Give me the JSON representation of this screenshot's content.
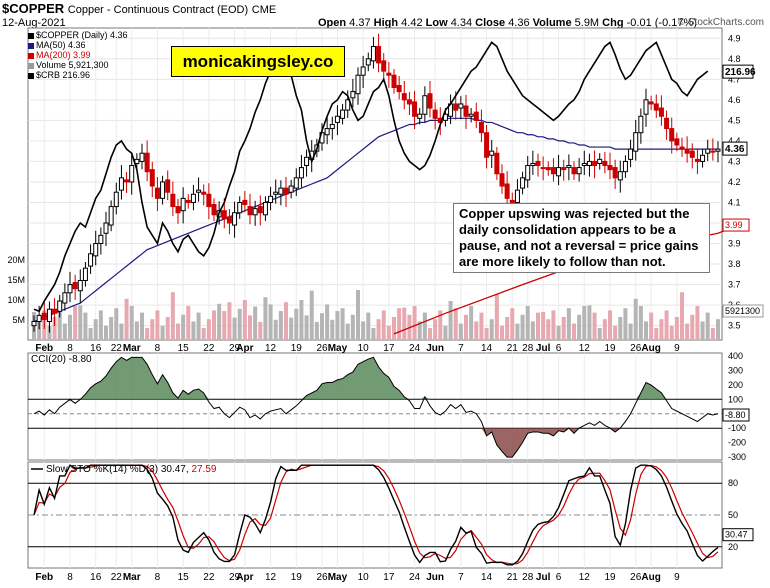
{
  "header": {
    "symbol": "$COPPER",
    "name": "Copper - Continuous Contract (EOD)",
    "exchange": "CME",
    "date": "12-Aug-2021",
    "ohlc": {
      "open": "4.37",
      "high": "4.42",
      "low": "4.34",
      "close": "4.36",
      "volume": "5.9M",
      "chg": "-0.01 (-0.17%)"
    },
    "watermark": "© StockCharts.com"
  },
  "brand": "monicakingsley.co",
  "annotation": "Copper upswing was rejected but the daily consolidation appears to be a pause, and not a reversal = price gains are more likely to follow than not.",
  "legend": [
    {
      "label": "$COPPER (Daily) 4.36",
      "color": "#000000"
    },
    {
      "label": "MA(50) 4.36",
      "color": "#1a1a80"
    },
    {
      "label": "MA(200) 3.99",
      "color": "#cc0000"
    },
    {
      "label": "Volume 5,921,300",
      "color": "#999999"
    },
    {
      "label": "$CRB 216.96",
      "color": "#000000"
    }
  ],
  "colors": {
    "up": "#000000",
    "down": "#cc0000",
    "ma50": "#1a1a80",
    "ma200": "#cc0000",
    "crb": "#000000",
    "volUp": "#b5b5b5",
    "volDown": "#e8a8b0",
    "cciFill": "#5b8a5b",
    "cciNeg": "#8a4a4a",
    "stoK": "#000000",
    "stoD": "#cc0000"
  },
  "chart_data": [
    {
      "type": "candlestick",
      "title": "$COPPER (Daily)",
      "ylim": [
        3.43,
        4.95
      ],
      "yticks": [
        "4.9",
        "4.8",
        "4.7",
        "4.6",
        "4.5",
        "4.4",
        "4.3",
        "4.2",
        "4.1",
        "4.0",
        "3.9",
        "3.8",
        "3.7",
        "3.6",
        "3.5"
      ],
      "right_labels": {
        "close": "4.36",
        "crb": "216.96",
        "ma200": "3.99",
        "volume": "5921300"
      },
      "xticks": [
        "Feb",
        "8",
        "16",
        "22",
        "Mar",
        "8",
        "15",
        "22",
        "29",
        "Apr",
        "12",
        "19",
        "26",
        "May",
        "10",
        "17",
        "24",
        "Jun",
        "7",
        "14",
        "21",
        "28",
        "Jul",
        "6",
        "12",
        "19",
        "26",
        "Aug",
        "9"
      ],
      "close": [
        3.52,
        3.55,
        3.53,
        3.58,
        3.56,
        3.62,
        3.66,
        3.7,
        3.68,
        3.72,
        3.78,
        3.85,
        3.9,
        3.94,
        4.0,
        4.08,
        4.15,
        4.22,
        4.2,
        4.28,
        4.31,
        4.34,
        4.25,
        4.18,
        4.12,
        4.2,
        4.15,
        4.08,
        4.05,
        4.12,
        4.1,
        4.14,
        4.16,
        4.14,
        4.08,
        4.04,
        4.06,
        4.02,
        4.0,
        4.05,
        4.1,
        4.09,
        4.04,
        4.07,
        4.05,
        4.1,
        4.13,
        4.15,
        4.17,
        4.14,
        4.18,
        4.22,
        4.27,
        4.32,
        4.35,
        4.38,
        4.44,
        4.46,
        4.48,
        4.52,
        4.55,
        4.6,
        4.64,
        4.72,
        4.76,
        4.8,
        4.86,
        4.78,
        4.74,
        4.72,
        4.66,
        4.64,
        4.6,
        4.58,
        4.52,
        4.53,
        4.62,
        4.56,
        4.51,
        4.49,
        4.53,
        4.58,
        4.55,
        4.58,
        4.52,
        4.53,
        4.5,
        4.44,
        4.32,
        4.35,
        4.24,
        4.18,
        4.12,
        4.1,
        4.16,
        4.22,
        4.28,
        4.29,
        4.28,
        4.27,
        4.26,
        4.24,
        4.27,
        4.26,
        4.28,
        4.24,
        4.27,
        4.29,
        4.3,
        4.28,
        4.31,
        4.28,
        4.26,
        4.22,
        4.25,
        4.3,
        4.36,
        4.44,
        4.52,
        4.6,
        4.58,
        4.55,
        4.52,
        4.46,
        4.4,
        4.38,
        4.36,
        4.34,
        4.32,
        4.3,
        4.33,
        4.36,
        4.35,
        4.36
      ],
      "crb": [
        3.58,
        3.57,
        3.62,
        3.66,
        3.7,
        3.76,
        3.84,
        3.9,
        3.96,
        4.0,
        3.98,
        4.05,
        4.12,
        4.16,
        4.24,
        4.32,
        4.38,
        4.4,
        4.36,
        4.34,
        4.26,
        4.1,
        3.98,
        3.94,
        3.9,
        4.0,
        3.96,
        3.9,
        3.86,
        3.92,
        3.94,
        3.9,
        3.86,
        3.84,
        3.88,
        3.95,
        4.05,
        4.1,
        4.18,
        4.25,
        4.35,
        4.4,
        4.46,
        4.54,
        4.6,
        4.68,
        4.74,
        4.8,
        4.85,
        4.82,
        4.72,
        4.62,
        4.55,
        4.4,
        4.3,
        4.36,
        4.45,
        4.52,
        4.58,
        4.6,
        4.64,
        4.62,
        4.55,
        4.5,
        4.52,
        4.58,
        4.64,
        4.66,
        4.7,
        4.62,
        4.5,
        4.4,
        4.34,
        4.3,
        4.28,
        4.26,
        4.28,
        4.33,
        4.4,
        4.48,
        4.55,
        4.58,
        4.62,
        4.66,
        4.7,
        4.74,
        4.76,
        4.8,
        4.84,
        4.88,
        4.86,
        4.8,
        4.74,
        4.7,
        4.66,
        4.62,
        4.6,
        4.58,
        4.56,
        4.54,
        4.52,
        4.5,
        4.52,
        4.55,
        4.58,
        4.6,
        4.64,
        4.7,
        4.74,
        4.78,
        4.82,
        4.86,
        4.88,
        4.82,
        4.75,
        4.7,
        4.72,
        4.76,
        4.8,
        4.84,
        4.86,
        4.88,
        4.82,
        4.76,
        4.7,
        4.68,
        4.64,
        4.62,
        4.66,
        4.7,
        4.72,
        4.74
      ],
      "ma50": [
        3.52,
        3.53,
        3.54,
        3.55,
        3.56,
        3.57,
        3.58,
        3.59,
        3.6,
        3.61,
        3.63,
        3.65,
        3.67,
        3.69,
        3.71,
        3.73,
        3.75,
        3.77,
        3.79,
        3.81,
        3.83,
        3.85,
        3.87,
        3.88,
        3.89,
        3.9,
        3.91,
        3.92,
        3.93,
        3.94,
        3.95,
        3.96,
        3.97,
        3.98,
        3.99,
        4.0,
        4.01,
        4.02,
        4.03,
        4.04,
        4.05,
        4.06,
        4.07,
        4.08,
        4.09,
        4.1,
        4.11,
        4.12,
        4.13,
        4.14,
        4.15,
        4.16,
        4.17,
        4.18,
        4.19,
        4.2,
        4.21,
        4.22,
        4.24,
        4.26,
        4.28,
        4.3,
        4.32,
        4.34,
        4.36,
        4.38,
        4.4,
        4.42,
        4.43,
        4.44,
        4.45,
        4.46,
        4.47,
        4.48,
        4.48,
        4.49,
        4.49,
        4.5,
        4.5,
        4.5,
        4.51,
        4.51,
        4.51,
        4.51,
        4.51,
        4.51,
        4.5,
        4.5,
        4.49,
        4.49,
        4.48,
        4.47,
        4.46,
        4.45,
        4.44,
        4.44,
        4.43,
        4.43,
        4.42,
        4.42,
        4.41,
        4.41,
        4.4,
        4.4,
        4.39,
        4.39,
        4.38,
        4.38,
        4.37,
        4.37,
        4.37,
        4.37,
        4.37,
        4.36,
        4.36,
        4.36,
        4.36,
        4.36,
        4.36,
        4.36,
        4.36,
        4.36,
        4.36,
        4.36,
        4.36,
        4.36,
        4.36,
        4.36,
        4.36,
        4.36,
        4.36,
        4.36,
        4.36,
        4.36
      ],
      "ma200": [
        [
          70,
          3.46
        ],
        [
          80,
          3.56
        ],
        [
          95,
          3.7
        ],
        [
          105,
          3.79
        ],
        [
          115,
          3.86
        ],
        [
          125,
          3.91
        ],
        [
          133,
          3.95
        ],
        [
          137,
          3.99
        ]
      ],
      "volume_max": "20M",
      "volume_ticks": [
        "20M",
        "15M",
        "10M",
        "5M"
      ]
    },
    {
      "type": "line",
      "title": "CCI(20) -8.80",
      "ylim": [
        -320,
        420
      ],
      "yticks": [
        "400",
        "300",
        "200",
        "100",
        "0",
        "-100",
        "-200",
        "-300"
      ],
      "last_label": "-8.80"
    },
    {
      "type": "line",
      "title": "Slow STO %K(14) %D(3) 30.47, 27.59",
      "ylim": [
        0,
        100
      ],
      "yticks": [
        "80",
        "50",
        "20"
      ],
      "labels": {
        "k": "30.47",
        "d": "27.59"
      }
    }
  ],
  "indicator_labels": {
    "cci_prefix": "CCI(20)",
    "cci_value": "-8.80",
    "sto_prefix": "Slow STO %K(14) %D(3)",
    "sto_k": "30.47,",
    "sto_d": "27.59"
  }
}
